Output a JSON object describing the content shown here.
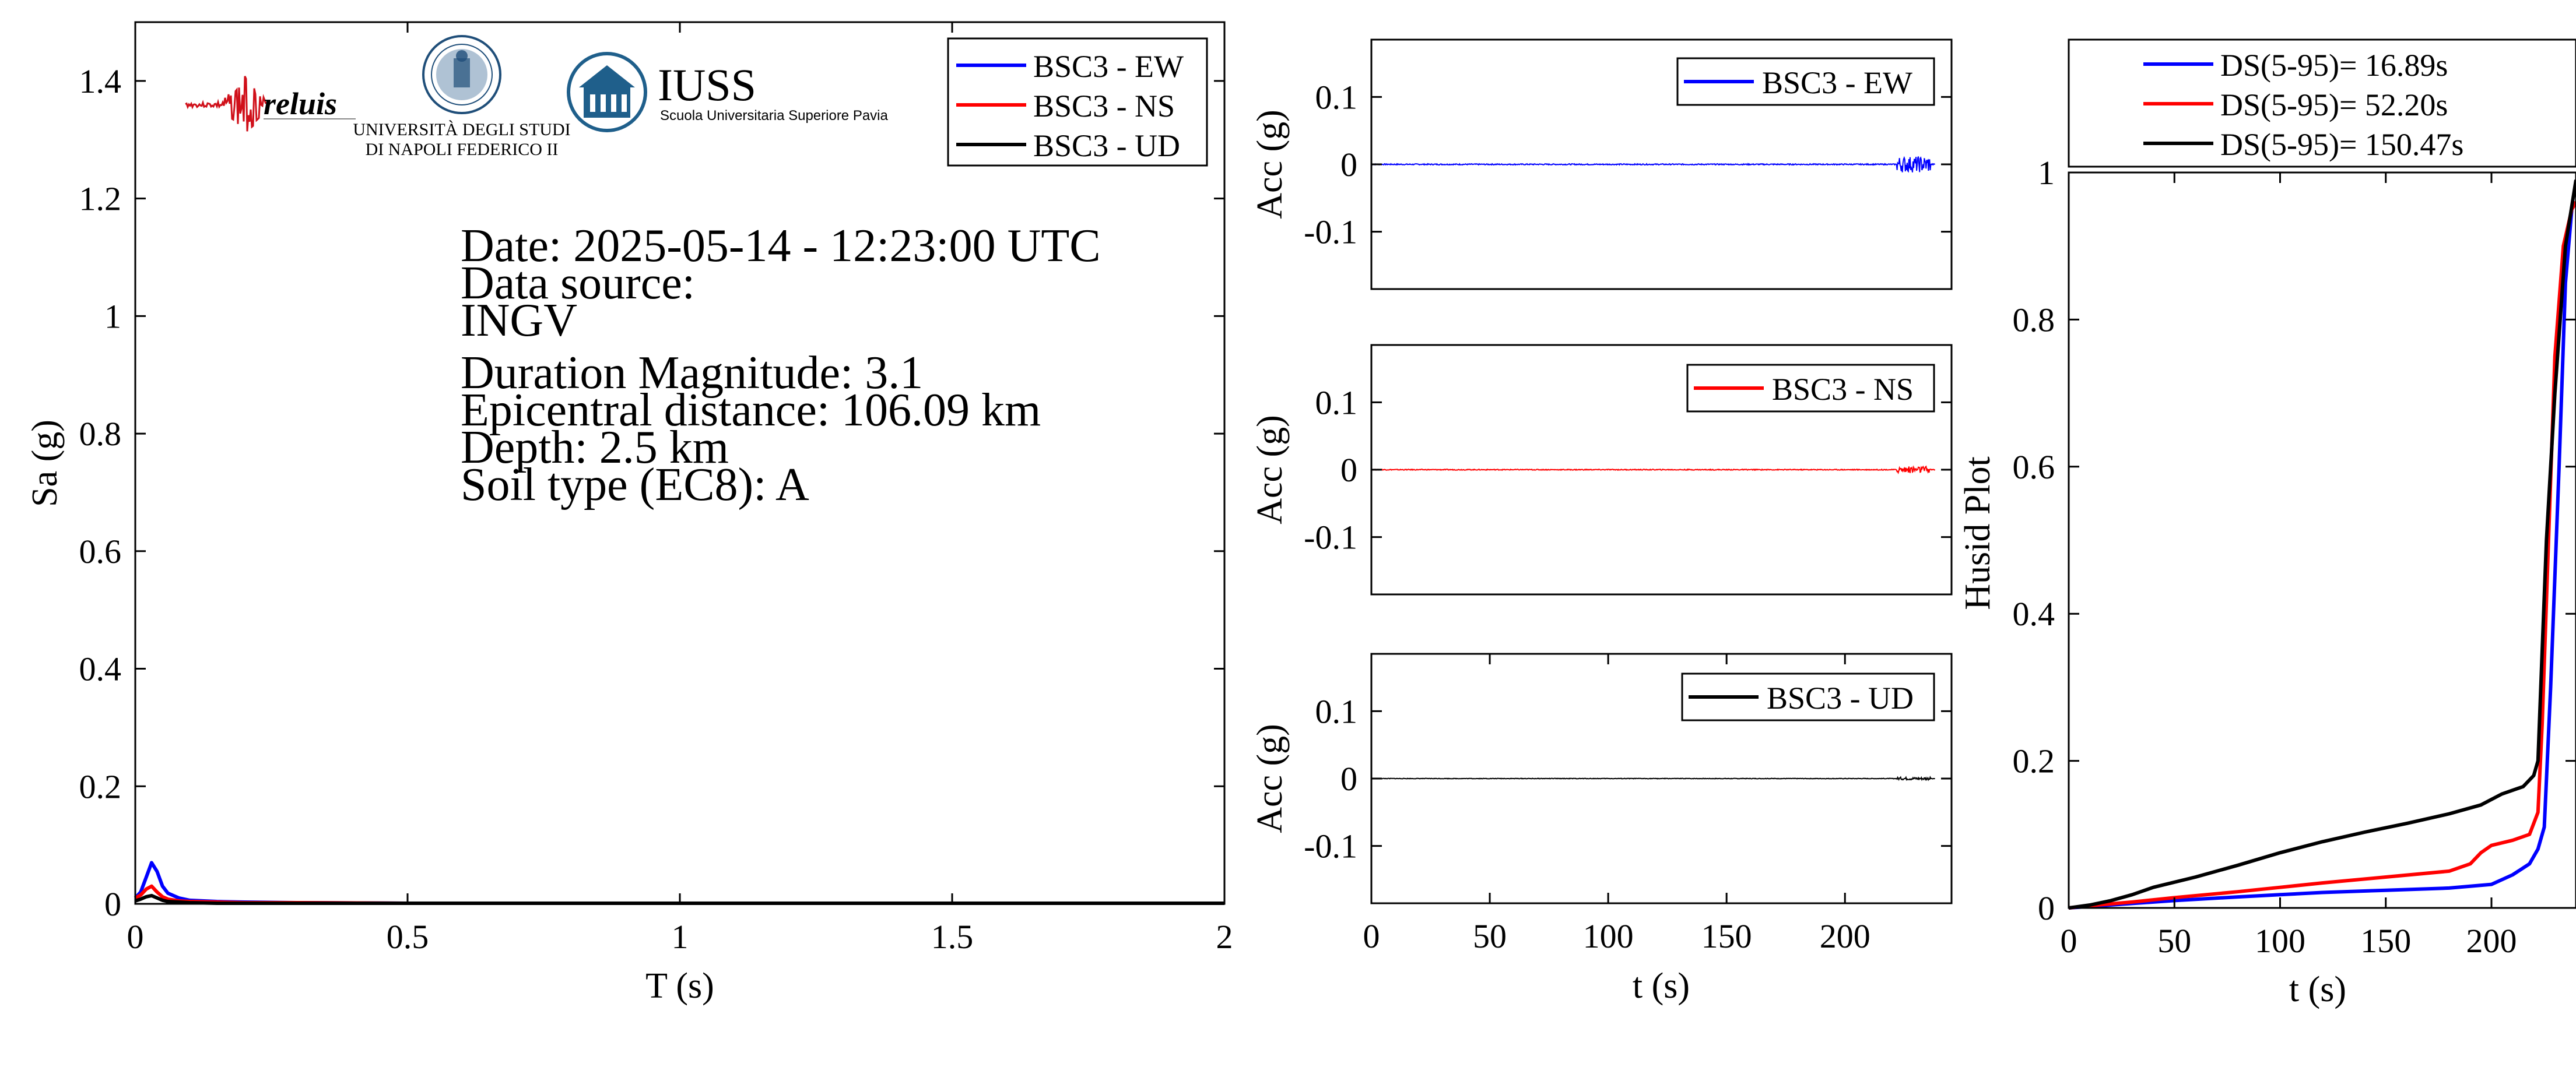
{
  "colors": {
    "ew": "#0000ff",
    "ns": "#ff0000",
    "ud": "#000000",
    "iuss": "#1f5f8b",
    "reluis": "#d0101a"
  },
  "logos": {
    "reluis": {
      "text": "reluis",
      "icon": "seismograph-wave-icon"
    },
    "unina": {
      "line1": "UNIVERSITÀ DEGLI STUDI",
      "line2": "DI NAPOLI FEDERICO II",
      "icon": "university-seal-icon"
    },
    "iuss": {
      "title": "IUSS",
      "subtitle": "Scuola Universitaria Superiore Pavia",
      "icon": "iuss-building-icon"
    }
  },
  "info": {
    "date": "Date: 2025-05-14 - 12:23:00 UTC",
    "source_label": "Data source:",
    "source": "INGV",
    "magnitude": "Duration Magnitude: 3.1",
    "distance": "Epicentral distance: 106.09 km",
    "depth": "Depth: 2.5 km",
    "soil": "Soil type (EC8): A"
  },
  "chart_data": [
    {
      "id": "spectrum",
      "type": "line",
      "xlabel": "T (s)",
      "ylabel": "Sa (g)",
      "xlim": [
        0,
        2
      ],
      "ylim": [
        0,
        1.5
      ],
      "xticks": [
        0,
        0.5,
        1,
        1.5,
        2
      ],
      "xtick_labels": [
        "0",
        "0.5",
        "1",
        "1.5",
        "2"
      ],
      "yticks": [
        0,
        0.2,
        0.4,
        0.6,
        0.8,
        1,
        1.2,
        1.4
      ],
      "ytick_labels": [
        "0",
        "0.2",
        "0.4",
        "0.6",
        "0.8",
        "1",
        "1.2",
        "1.4"
      ],
      "legend_position": "top-right",
      "series": [
        {
          "name": "BSC3 - EW",
          "color": "#0000ff",
          "x": [
            0,
            0.01,
            0.02,
            0.03,
            0.04,
            0.05,
            0.06,
            0.08,
            0.1,
            0.15,
            0.2,
            0.3,
            0.5,
            1,
            1.5,
            2
          ],
          "y": [
            0.01,
            0.02,
            0.045,
            0.07,
            0.055,
            0.03,
            0.018,
            0.01,
            0.006,
            0.004,
            0.003,
            0.002,
            0.001,
            0.001,
            0.001,
            0.001
          ]
        },
        {
          "name": "BSC3 - NS",
          "color": "#ff0000",
          "x": [
            0,
            0.01,
            0.02,
            0.03,
            0.04,
            0.05,
            0.06,
            0.08,
            0.1,
            0.15,
            0.2,
            0.3,
            0.5,
            1,
            1.5,
            2
          ],
          "y": [
            0.01,
            0.015,
            0.025,
            0.03,
            0.02,
            0.012,
            0.008,
            0.005,
            0.004,
            0.003,
            0.002,
            0.002,
            0.001,
            0.001,
            0.001,
            0.001
          ]
        },
        {
          "name": "BSC3 - UD",
          "color": "#000000",
          "x": [
            0,
            0.01,
            0.02,
            0.03,
            0.04,
            0.05,
            0.06,
            0.08,
            0.1,
            0.15,
            0.2,
            0.3,
            0.5,
            1,
            1.5,
            2
          ],
          "y": [
            0.005,
            0.008,
            0.012,
            0.014,
            0.01,
            0.006,
            0.004,
            0.003,
            0.002,
            0.001,
            0.001,
            0.001,
            0.001,
            0.001,
            0.001,
            0.001
          ]
        }
      ]
    },
    {
      "id": "acc-ew",
      "type": "line",
      "xlabel": "",
      "ylabel": "Acc (g)",
      "xlim": [
        0,
        245
      ],
      "ylim": [
        -0.185,
        0.185
      ],
      "yticks": [
        0.1,
        0,
        -0.1
      ],
      "ytick_labels": [
        "0.1",
        "0",
        "-0.1"
      ],
      "legend_position": "top-right",
      "series": [
        {
          "name": "BSC3 - EW",
          "color": "#0000ff",
          "burst": [
            222,
            236
          ],
          "burst_amplitude": 0.012,
          "base_amplitude": 0.0008
        }
      ]
    },
    {
      "id": "acc-ns",
      "type": "line",
      "xlabel": "",
      "ylabel": "Acc (g)",
      "xlim": [
        0,
        245
      ],
      "ylim": [
        -0.185,
        0.185
      ],
      "yticks": [
        0.1,
        0,
        -0.1
      ],
      "ytick_labels": [
        "0.1",
        "0",
        "-0.1"
      ],
      "legend_position": "top-right",
      "series": [
        {
          "name": "BSC3 - NS",
          "color": "#ff0000",
          "burst": [
            222,
            236
          ],
          "burst_amplitude": 0.005,
          "base_amplitude": 0.0006
        }
      ]
    },
    {
      "id": "acc-ud",
      "type": "line",
      "xlabel": "t (s)",
      "ylabel": "Acc (g)",
      "xlim": [
        0,
        245
      ],
      "ylim": [
        -0.185,
        0.185
      ],
      "xticks": [
        0,
        50,
        100,
        150,
        200
      ],
      "xtick_labels": [
        "0",
        "50",
        "100",
        "150",
        "200"
      ],
      "yticks": [
        0.1,
        0,
        -0.1
      ],
      "ytick_labels": [
        "0.1",
        "0",
        "-0.1"
      ],
      "legend_position": "top-right",
      "series": [
        {
          "name": "BSC3 - UD",
          "color": "#000000",
          "burst": [
            222,
            236
          ],
          "burst_amplitude": 0.002,
          "base_amplitude": 0.0004
        }
      ]
    },
    {
      "id": "husid",
      "type": "line",
      "xlabel": "t (s)",
      "ylabel": "Husid Plot",
      "xlim": [
        0,
        240
      ],
      "ylim": [
        0,
        1
      ],
      "xticks": [
        0,
        50,
        100,
        150,
        200
      ],
      "xtick_labels": [
        "0",
        "50",
        "100",
        "150",
        "200"
      ],
      "yticks": [
        0,
        0.2,
        0.4,
        0.6,
        0.8,
        1
      ],
      "ytick_labels": [
        "0",
        "0.2",
        "0.4",
        "0.6",
        "0.8",
        "1"
      ],
      "legend_position": "top (outside)",
      "series": [
        {
          "name": "DS(5-95)= 16.89s",
          "color": "#0000ff",
          "x": [
            0,
            10,
            30,
            50,
            80,
            100,
            120,
            150,
            180,
            200,
            210,
            218,
            222,
            225,
            228,
            232,
            235,
            238,
            240
          ],
          "y": [
            0,
            0.002,
            0.006,
            0.01,
            0.015,
            0.018,
            0.021,
            0.024,
            0.027,
            0.032,
            0.045,
            0.06,
            0.08,
            0.11,
            0.3,
            0.6,
            0.85,
            0.95,
            0.96
          ]
        },
        {
          "name": "DS(5-95)= 52.20s",
          "color": "#ff0000",
          "x": [
            0,
            10,
            30,
            50,
            80,
            100,
            120,
            150,
            180,
            190,
            195,
            200,
            210,
            218,
            222,
            224,
            227,
            230,
            234,
            238,
            240
          ],
          "y": [
            0,
            0.003,
            0.008,
            0.014,
            0.022,
            0.028,
            0.034,
            0.042,
            0.05,
            0.06,
            0.075,
            0.085,
            0.092,
            0.1,
            0.13,
            0.25,
            0.5,
            0.75,
            0.9,
            0.95,
            0.96
          ]
        },
        {
          "name": "DS(5-95)= 150.47s",
          "color": "#000000",
          "x": [
            0,
            10,
            20,
            30,
            40,
            60,
            80,
            100,
            120,
            140,
            160,
            180,
            195,
            205,
            215,
            220,
            222,
            224,
            226,
            230,
            235,
            240
          ],
          "y": [
            0,
            0.004,
            0.01,
            0.018,
            0.028,
            0.042,
            0.058,
            0.075,
            0.09,
            0.103,
            0.115,
            0.128,
            0.14,
            0.155,
            0.165,
            0.18,
            0.2,
            0.35,
            0.5,
            0.7,
            0.9,
            0.99
          ]
        }
      ]
    }
  ]
}
